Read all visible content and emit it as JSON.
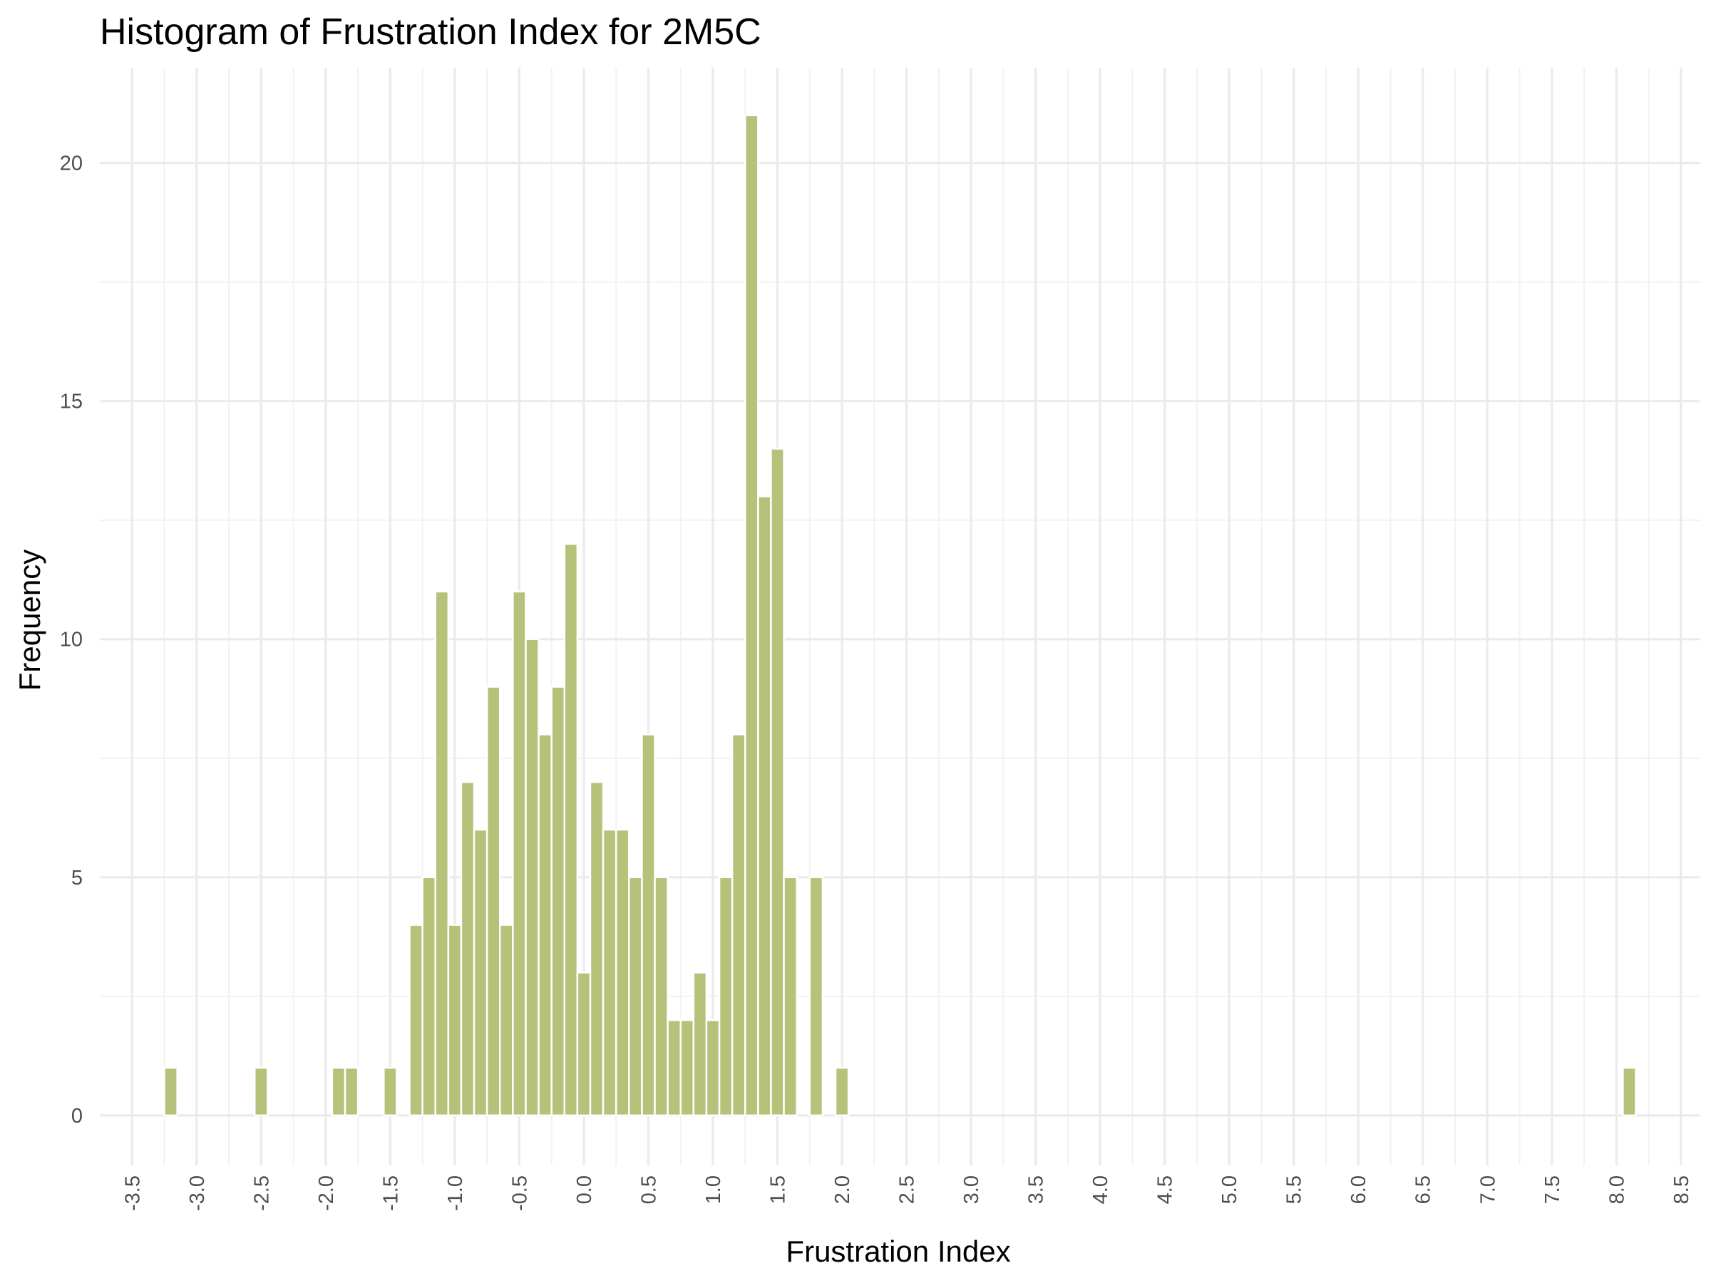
{
  "chart_data": {
    "type": "bar",
    "title": "Histogram of Frustration Index for 2M5C",
    "xlabel": "Frustration Index",
    "ylabel": "Frequency",
    "bin_width": 0.1,
    "xlim": [
      -3.75,
      8.65
    ],
    "ylim": [
      -1.05,
      22
    ],
    "x_ticks": [
      -3.5,
      -3.0,
      -2.5,
      -2.0,
      -1.5,
      -1.0,
      -0.5,
      0.0,
      0.5,
      1.0,
      1.5,
      2.0,
      2.5,
      3.0,
      3.5,
      4.0,
      4.5,
      5.0,
      5.5,
      6.0,
      6.5,
      7.0,
      7.5,
      8.0,
      8.5
    ],
    "x_tick_labels": [
      "-3.5",
      "-3.0",
      "-2.5",
      "-2.0",
      "-1.5",
      "-1.0",
      "-0.5",
      "0.0",
      "0.5",
      "1.0",
      "1.5",
      "2.0",
      "2.5",
      "3.0",
      "3.5",
      "4.0",
      "4.5",
      "5.0",
      "5.5",
      "6.0",
      "6.5",
      "7.0",
      "7.5",
      "8.0",
      "8.5"
    ],
    "y_ticks": [
      0,
      5,
      10,
      15,
      20
    ],
    "y_tick_labels": [
      "0",
      "5",
      "10",
      "15",
      "20"
    ],
    "grid": true,
    "bar_color": "#B5C27A",
    "x": [
      -3.2,
      -2.5,
      -1.9,
      -1.8,
      -1.5,
      -1.3,
      -1.2,
      -1.1,
      -1.0,
      -0.9,
      -0.8,
      -0.7,
      -0.6,
      -0.5,
      -0.4,
      -0.3,
      -0.2,
      -0.1,
      0.0,
      0.1,
      0.2,
      0.3,
      0.4,
      0.5,
      0.6,
      0.7,
      0.8,
      0.9,
      1.0,
      1.1,
      1.2,
      1.3,
      1.4,
      1.5,
      1.6,
      1.8,
      2.0,
      8.1
    ],
    "values": [
      1,
      1,
      1,
      1,
      1,
      4,
      5,
      11,
      4,
      7,
      6,
      9,
      4,
      11,
      10,
      8,
      9,
      12,
      3,
      7,
      6,
      6,
      5,
      8,
      5,
      2,
      2,
      3,
      2,
      5,
      8,
      21,
      13,
      14,
      5,
      5,
      1,
      1
    ]
  }
}
